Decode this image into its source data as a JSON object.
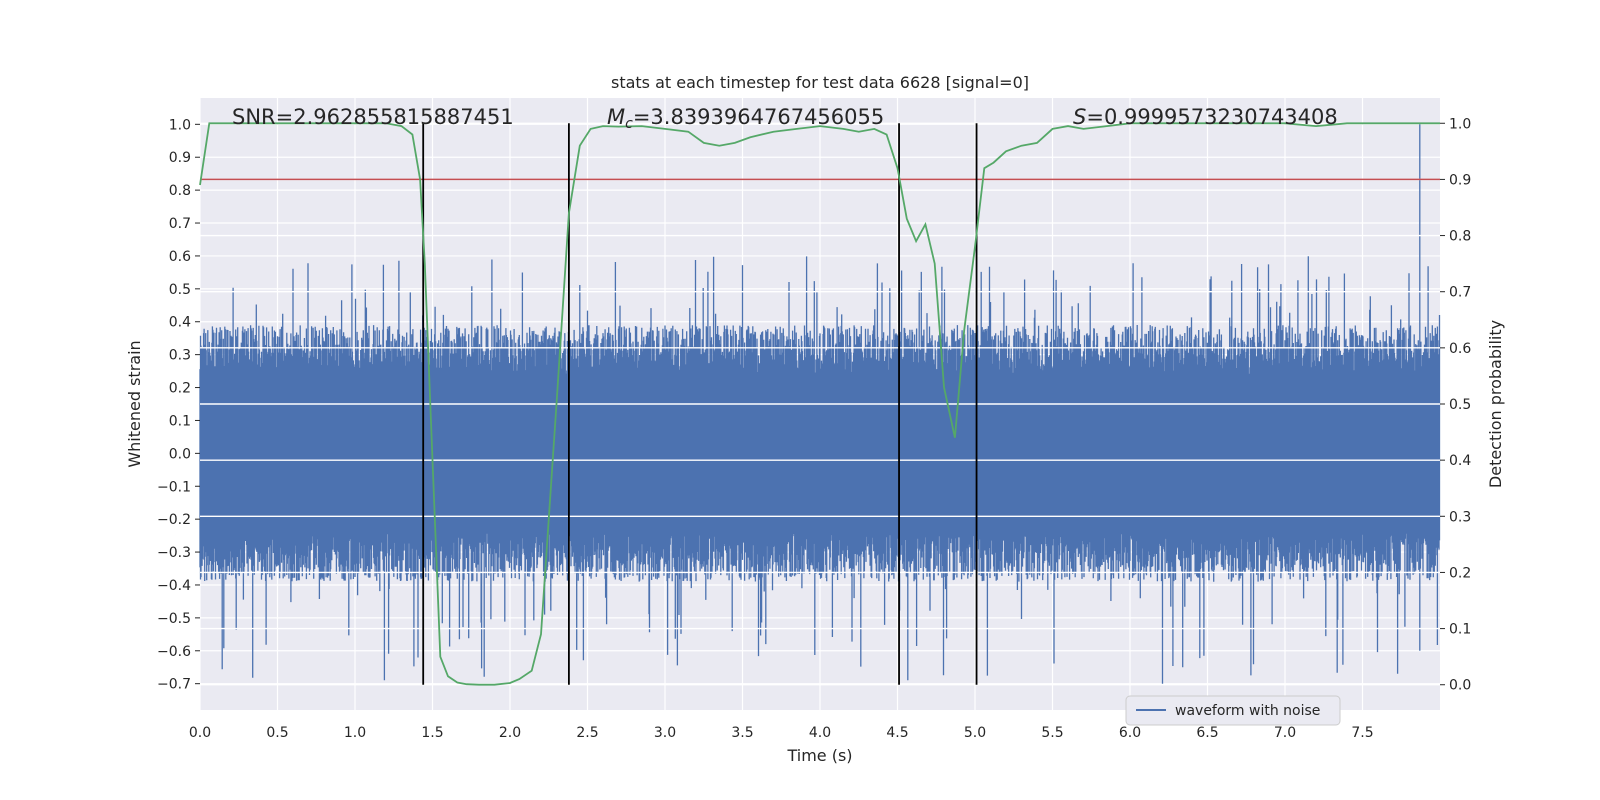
{
  "chart_data": {
    "type": "line",
    "title": "stats at each timestep for test data 6628 [signal=0]",
    "xlabel": "Time (s)",
    "ylabel_left": "Whitened strain",
    "ylabel_right": "Detection probability",
    "xlim": [
      0.0,
      8.0
    ],
    "ylim_left": [
      -0.78,
      1.08
    ],
    "ylim_right": [
      -0.045,
      1.045
    ],
    "x_ticks": [
      "0.0",
      "0.5",
      "1.0",
      "1.5",
      "2.0",
      "2.5",
      "3.0",
      "3.5",
      "4.0",
      "4.5",
      "5.0",
      "5.5",
      "6.0",
      "6.5",
      "7.0",
      "7.5"
    ],
    "y_left_ticks": [
      "−0.7",
      "−0.6",
      "−0.5",
      "−0.4",
      "−0.3",
      "−0.2",
      "−0.1",
      "0.0",
      "0.1",
      "0.2",
      "0.3",
      "0.4",
      "0.5",
      "0.6",
      "0.7",
      "0.8",
      "0.9",
      "1.0"
    ],
    "y_right_ticks": [
      "0.0",
      "0.1",
      "0.2",
      "0.3",
      "0.4",
      "0.5",
      "0.6",
      "0.7",
      "0.8",
      "0.9",
      "1.0"
    ],
    "annotations": {
      "snr": "SNR=2.962855815887451",
      "mc_symbol": "M",
      "mc_sub": "c",
      "mc_value": "=3.8393964767456055",
      "s_symbol": "S",
      "s_value": "=0.9999573230743408"
    },
    "vertical_lines_x": [
      1.44,
      2.38,
      4.51,
      5.01
    ],
    "threshold_probability": 0.9,
    "series": [
      {
        "name": "waveform with noise",
        "color": "#4c72b0",
        "axis": "left",
        "typical_amplitude": 0.3,
        "spike_max": 1.0,
        "spike_min": -0.7
      },
      {
        "name": "detection probability",
        "color": "#55a868",
        "axis": "right",
        "x": [
          0.0,
          0.06,
          0.15,
          0.3,
          0.5,
          0.7,
          0.9,
          1.1,
          1.2,
          1.3,
          1.37,
          1.42,
          1.45,
          1.5,
          1.55,
          1.6,
          1.66,
          1.72,
          1.8,
          1.9,
          2.0,
          2.06,
          2.14,
          2.2,
          2.3,
          2.38,
          2.45,
          2.52,
          2.6,
          2.7,
          2.85,
          3.0,
          3.15,
          3.25,
          3.35,
          3.45,
          3.55,
          3.7,
          3.85,
          4.0,
          4.15,
          4.25,
          4.35,
          4.43,
          4.5,
          4.56,
          4.62,
          4.68,
          4.74,
          4.8,
          4.87,
          4.93,
          5.0,
          5.06,
          5.12,
          5.2,
          5.3,
          5.4,
          5.5,
          5.6,
          5.7,
          5.85,
          6.0,
          6.2,
          6.5,
          6.8,
          7.0,
          7.2,
          7.4,
          7.55,
          7.7,
          8.0
        ],
        "values": [
          0.89,
          1.0,
          1.0,
          1.0,
          1.0,
          1.0,
          1.0,
          1.0,
          1.0,
          0.995,
          0.98,
          0.9,
          0.75,
          0.4,
          0.05,
          0.015,
          0.004,
          0.001,
          0.0,
          0.0,
          0.003,
          0.01,
          0.025,
          0.09,
          0.5,
          0.84,
          0.96,
          0.99,
          0.995,
          0.994,
          0.995,
          0.99,
          0.985,
          0.965,
          0.96,
          0.965,
          0.975,
          0.985,
          0.99,
          0.995,
          0.99,
          0.985,
          0.99,
          0.98,
          0.92,
          0.83,
          0.79,
          0.82,
          0.75,
          0.53,
          0.44,
          0.63,
          0.78,
          0.92,
          0.93,
          0.95,
          0.96,
          0.965,
          0.99,
          0.995,
          0.99,
          0.995,
          1.0,
          1.0,
          1.0,
          1.0,
          1.0,
          0.995,
          1.0,
          1.0,
          1.0,
          1.0
        ]
      }
    ],
    "legend": [
      "waveform with noise"
    ],
    "legend_location": "lower-right",
    "grid": true
  }
}
